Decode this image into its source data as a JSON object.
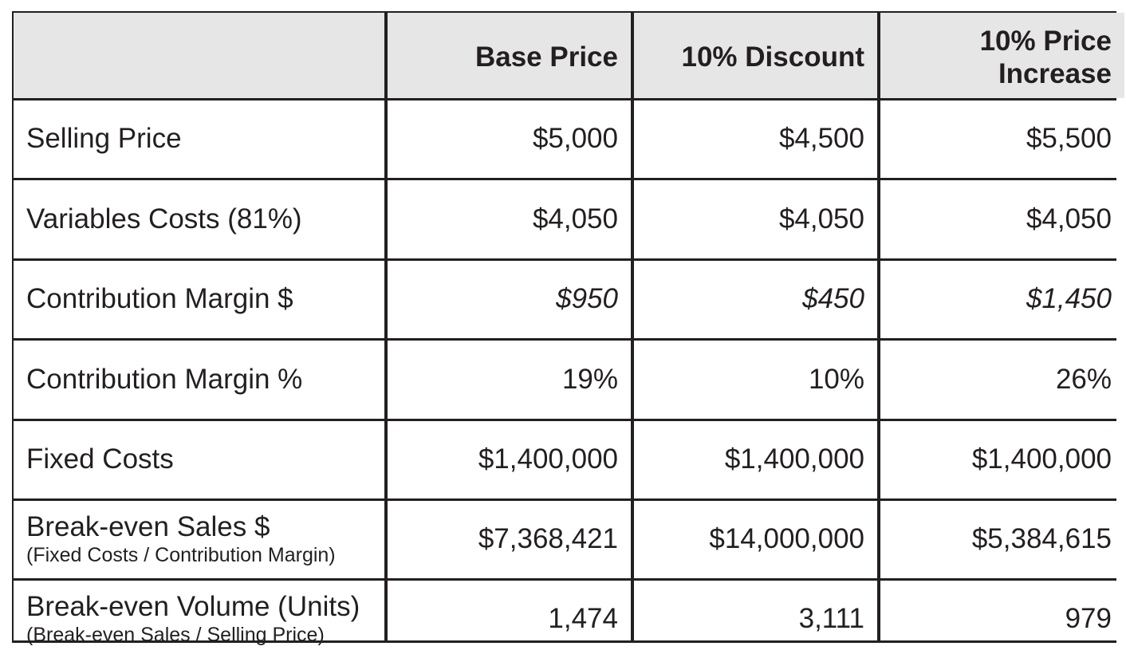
{
  "table": {
    "headers": [
      "",
      "Base Price",
      "10% Discount",
      "10% Price\nIncrease"
    ],
    "rows": [
      {
        "label": "Selling Price",
        "sublabel": "",
        "italic": false,
        "values": [
          "$5,000",
          "$4,500",
          "$5,500"
        ]
      },
      {
        "label": "Variables Costs (81%)",
        "sublabel": "",
        "italic": false,
        "values": [
          "$4,050",
          "$4,050",
          "$4,050"
        ]
      },
      {
        "label": "Contribution Margin $",
        "sublabel": "",
        "italic": true,
        "values": [
          "$950",
          "$450",
          "$1,450"
        ]
      },
      {
        "label": "Contribution Margin %",
        "sublabel": "",
        "italic": false,
        "values": [
          "19%",
          "10%",
          "26%"
        ]
      },
      {
        "label": "Fixed Costs",
        "sublabel": "",
        "italic": false,
        "values": [
          "$1,400,000",
          "$1,400,000",
          "$1,400,000"
        ]
      },
      {
        "label": "Break-even Sales $",
        "sublabel": "(Fixed Costs / Contribution Margin)",
        "italic": false,
        "values": [
          "$7,368,421",
          "$14,000,000",
          "$5,384,615"
        ]
      },
      {
        "label": "Break-even Volume (Units)",
        "sublabel": "(Break-even Sales / Selling Price)",
        "italic": false,
        "values": [
          "1,474",
          "3,111",
          "979"
        ]
      }
    ]
  }
}
